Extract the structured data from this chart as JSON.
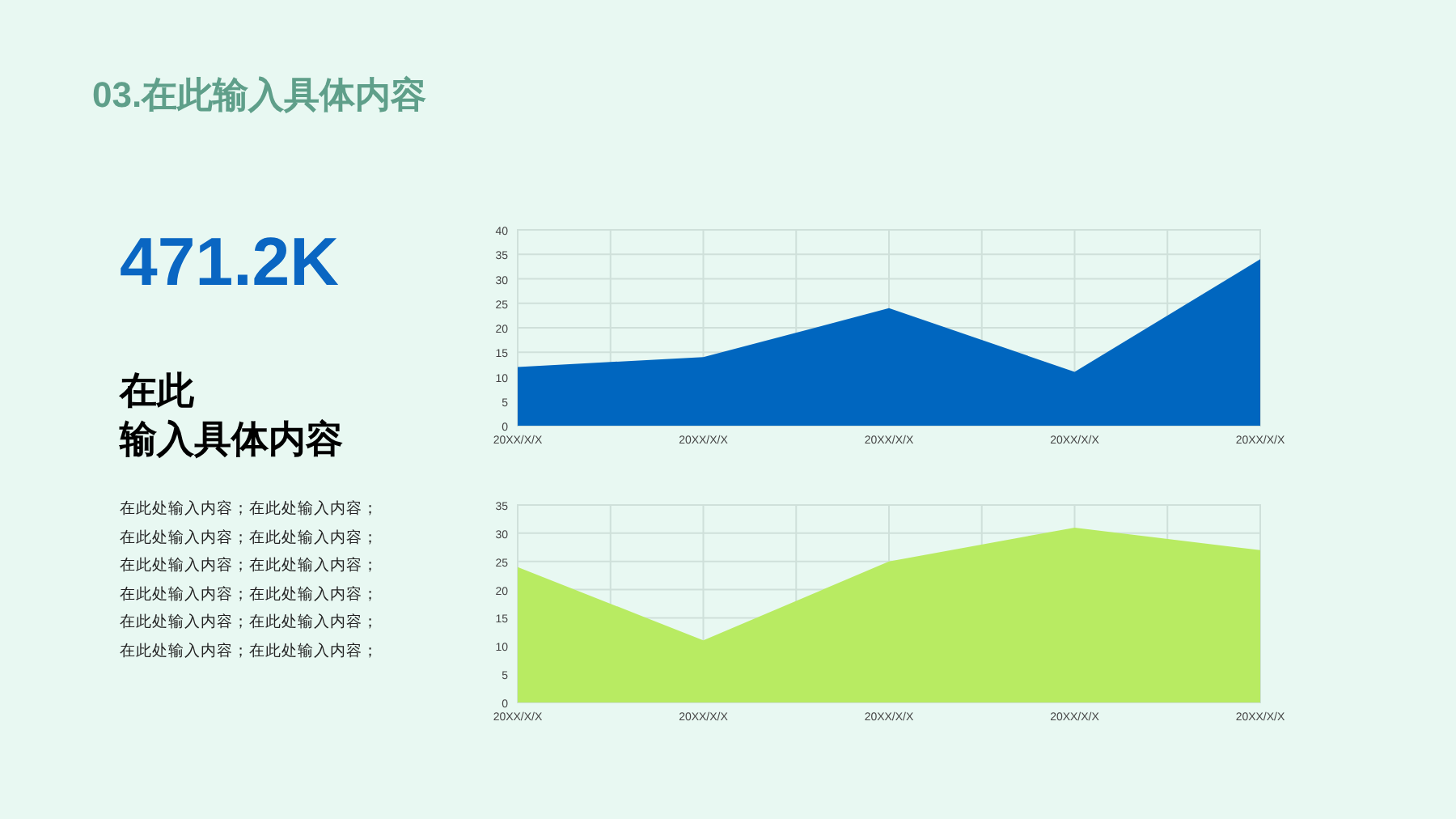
{
  "chart_data": [
    {
      "type": "other",
      "title": "03.在此输入具体内容",
      "annotations": [
        "471.2K",
        "在此",
        "输入具体内容",
        "在此处输入内容；在此处输入内容；在此处输入内容；在此处输入内容；在此处输入内容；在此处输入内容；在此处输入内容；在此处输入内容；在此处输入内容；在此处输入内容；在此处输入内容；在此处输入内容；"
      ]
    },
    {
      "type": "area",
      "categories": [
        "20XX/X/X",
        "20XX/X/X",
        "20XX/X/X",
        "20XX/X/X",
        "20XX/X/X"
      ],
      "series": [
        {
          "color": "#0066bf",
          "values": [
            12,
            14,
            24,
            11,
            34
          ]
        }
      ],
      "ylim": [
        0,
        40
      ],
      "yticks": [
        0,
        5,
        10,
        15,
        20,
        25,
        30,
        35,
        40
      ],
      "grid": true
    },
    {
      "type": "area",
      "categories": [
        "20XX/X/X",
        "20XX/X/X",
        "20XX/X/X",
        "20XX/X/X",
        "20XX/X/X"
      ],
      "series": [
        {
          "color": "#b8eb62",
          "values": [
            24,
            11,
            25,
            31,
            27
          ]
        }
      ],
      "ylim": [
        0,
        35
      ],
      "yticks": [
        0,
        5,
        10,
        15,
        20,
        25,
        30,
        35
      ],
      "grid": true
    }
  ]
}
